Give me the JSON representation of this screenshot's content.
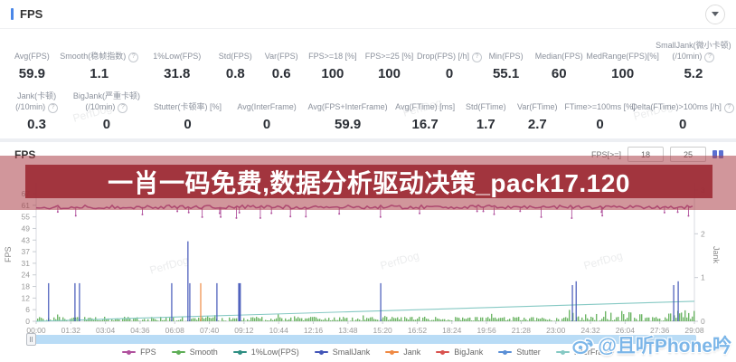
{
  "header": {
    "title": "FPS"
  },
  "metrics": {
    "row1": [
      {
        "id": "avg-fps",
        "label": [
          "Avg(FPS)"
        ],
        "value": "59.9",
        "w": 7
      },
      {
        "id": "smooth",
        "label": [
          "Smooth(稳帧指数)"
        ],
        "info": true,
        "value": "1.1",
        "w": 12
      },
      {
        "id": "low1pct-fps",
        "label": [
          "1%Low(FPS)"
        ],
        "value": "31.8",
        "w": 10
      },
      {
        "id": "std-fps",
        "label": [
          "Std(FPS)"
        ],
        "value": "0.8",
        "w": 6.5
      },
      {
        "id": "var-fps",
        "label": [
          "Var(FPS)"
        ],
        "value": "0.6",
        "w": 6.5
      },
      {
        "id": "fps-ge-18",
        "label": [
          "FPS>=18 [%]"
        ],
        "value": "100",
        "w": 8
      },
      {
        "id": "fps-ge-25",
        "label": [
          "FPS>=25 [%]"
        ],
        "value": "100",
        "w": 8
      },
      {
        "id": "drop-fps",
        "label": [
          "Drop(FPS) [/h]"
        ],
        "info": true,
        "value": "0",
        "w": 9
      },
      {
        "id": "min-fps",
        "label": [
          "Min(FPS)"
        ],
        "value": "55.1",
        "w": 7
      },
      {
        "id": "median-fps",
        "label": [
          "Median(FPS)"
        ],
        "value": "60",
        "w": 8
      },
      {
        "id": "medrange-fps",
        "label": [
          "MedRange(FPS)[%]"
        ],
        "value": "100",
        "w": 10
      },
      {
        "id": "smalljank",
        "label": [
          "SmallJank(微小卡顿)",
          "(/10min)"
        ],
        "info": true,
        "value": "5.2",
        "w": 10
      }
    ],
    "row2": [
      {
        "id": "jank",
        "label": [
          "Jank(卡顿)",
          "(/10min)"
        ],
        "info": true,
        "value": "0.3",
        "w": 8
      },
      {
        "id": "bigjank",
        "label": [
          "BigJank(严重卡顿)",
          "(/10min)"
        ],
        "info": true,
        "value": "0",
        "w": 11
      },
      {
        "id": "stutter",
        "label": [
          "Stutter(卡顿率) [%]"
        ],
        "value": "0",
        "w": 11
      },
      {
        "id": "avg-interframe",
        "label": [
          "Avg(InterFrame)"
        ],
        "value": "0",
        "w": 10.5
      },
      {
        "id": "avg-fps-interframe",
        "label": [
          "Avg(FPS+InterFrame)"
        ],
        "value": "59.9",
        "w": 11.5
      },
      {
        "id": "avg-ftime",
        "label": [
          "Avg(FTime) [ms]"
        ],
        "value": "16.7",
        "w": 9.5
      },
      {
        "id": "std-ftime",
        "label": [
          "Std(FTime)"
        ],
        "value": "1.7",
        "w": 7
      },
      {
        "id": "var-ftime",
        "label": [
          "Var(FTime)"
        ],
        "value": "2.7",
        "w": 7
      },
      {
        "id": "ftime-ge-100ms",
        "label": [
          "FTime>=100ms [%]"
        ],
        "value": "0",
        "w": 10
      },
      {
        "id": "delta-ftime",
        "label": [
          "Delta(FTime)>100ms [/h]"
        ],
        "info": true,
        "value": "0",
        "w": 12.5
      }
    ]
  },
  "chart_section": {
    "title": "FPS",
    "threshold_label": "FPS[>=]",
    "threshold_low": "18",
    "threshold_high": "25"
  },
  "banner": {
    "text": "一肖一码免费,数据分析驱动决策_pack17.120"
  },
  "watermark": {
    "text": "@且听Phone吟"
  },
  "bg_watermark": "PerfDog",
  "legend": {
    "items": [
      {
        "id": "fps",
        "label": "FPS",
        "color": "#b0519d"
      },
      {
        "id": "smooth",
        "label": "Smooth",
        "color": "#5fae57"
      },
      {
        "id": "low1pct",
        "label": "1%Low(FPS)",
        "color": "#2f8f83"
      },
      {
        "id": "smalljank",
        "label": "SmallJank",
        "color": "#4356b8"
      },
      {
        "id": "jank",
        "label": "Jank",
        "color": "#ef8a44"
      },
      {
        "id": "bigjank",
        "label": "BigJank",
        "color": "#d9534f"
      },
      {
        "id": "stutter",
        "label": "Stutter",
        "color": "#5a8fd6"
      },
      {
        "id": "interframe",
        "label": "InterFrame",
        "color": "#86c9c4"
      }
    ]
  },
  "chart_data": {
    "type": "line",
    "title": "FPS",
    "x_axis": {
      "labels": [
        "00:00",
        "01:32",
        "03:04",
        "04:36",
        "06:08",
        "07:40",
        "09:12",
        "10:44",
        "12:16",
        "13:48",
        "15:20",
        "16:52",
        "18:24",
        "19:56",
        "21:28",
        "23:00",
        "24:32",
        "26:04",
        "27:36",
        "29:08"
      ],
      "total_seconds": 1748
    },
    "y_axis_left": {
      "title": "FPS",
      "ticks_bottom_to_top": [
        0,
        6,
        12,
        18,
        24,
        31,
        37,
        43,
        49,
        55,
        61,
        67
      ],
      "max": 67
    },
    "y_axis_right": {
      "title": "Jank",
      "ticks_bottom_to_top": [
        0,
        1,
        2,
        3
      ]
    },
    "series": [
      {
        "name": "FPS",
        "color": "#b0519d",
        "style": "noisy-line",
        "mean": 60,
        "jitter": 1.2,
        "drop_tick_min": 54,
        "drop_tick_count": 28
      },
      {
        "name": "Smooth",
        "color": "#5fae57",
        "style": "dense-bars",
        "typical_range": [
          0,
          3
        ],
        "right_cluster_max": 6
      },
      {
        "name": "1%Low(FPS)",
        "color": "#2f8f83",
        "style": "line",
        "visible": false
      },
      {
        "name": "SmallJank",
        "color": "#4356b8",
        "style": "spikes",
        "points": [
          [
            "00:33",
            20
          ],
          [
            "01:43",
            20
          ],
          [
            "01:55",
            20
          ],
          [
            "06:00",
            20
          ],
          [
            "06:43",
            42
          ],
          [
            "06:48",
            20
          ],
          [
            "08:00",
            20
          ],
          [
            "09:00",
            20,
            3
          ],
          [
            "15:15",
            20
          ],
          [
            "23:44",
            19
          ],
          [
            "23:54",
            21
          ],
          [
            "28:13",
            19
          ],
          [
            "28:25",
            21
          ]
        ]
      },
      {
        "name": "Jank",
        "color": "#ef8a44",
        "style": "spikes",
        "points": [
          [
            "07:17",
            20
          ]
        ]
      },
      {
        "name": "BigJank",
        "color": "#d9534f",
        "style": "spikes",
        "points": []
      },
      {
        "name": "Stutter",
        "color": "#5a8fd6",
        "style": "spikes",
        "points": []
      },
      {
        "name": "InterFrame",
        "color": "#86c9c4",
        "style": "trend-line",
        "start_value": 0,
        "end_value": 10.5
      }
    ]
  }
}
